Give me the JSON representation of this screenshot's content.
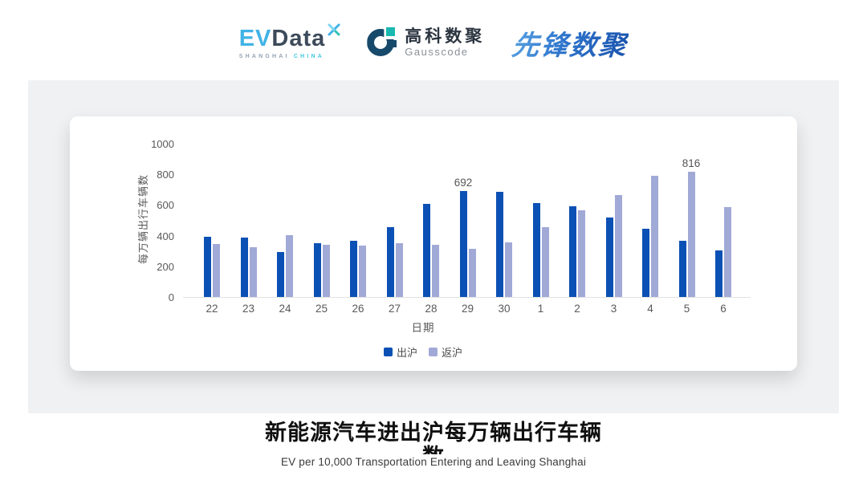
{
  "header": {
    "evdata": {
      "ev": "EV",
      "data": "Data",
      "sub_shanghai": "SHANGHAI",
      "sub_china": "CHINA"
    },
    "gausscode": {
      "name_cn": "高科数聚",
      "name_en": "Gausscode"
    },
    "pioneer": {
      "name_cn": "先锋数聚"
    }
  },
  "chart_data": {
    "type": "bar",
    "categories": [
      "22",
      "23",
      "24",
      "25",
      "26",
      "27",
      "28",
      "29",
      "30",
      "1",
      "2",
      "3",
      "4",
      "5",
      "6"
    ],
    "series": [
      {
        "name": "出沪",
        "color": "#0b50b4",
        "values": [
          395,
          385,
          295,
          350,
          365,
          455,
          610,
          692,
          685,
          615,
          590,
          520,
          445,
          365,
          305
        ]
      },
      {
        "name": "返沪",
        "color": "#a1a9d7",
        "values": [
          345,
          325,
          405,
          340,
          335,
          350,
          340,
          315,
          355,
          455,
          565,
          665,
          790,
          816,
          585
        ]
      }
    ],
    "data_labels": [
      {
        "series": 0,
        "category": "29",
        "value": "692"
      },
      {
        "series": 1,
        "category": "5",
        "value": "816"
      }
    ],
    "xlabel": "日期",
    "ylabel": "每万辆出行车辆数",
    "ylim": [
      0,
      1000
    ],
    "yticks": [
      0,
      200,
      400,
      600,
      800,
      1000
    ],
    "grid": "off",
    "legend_position": "bottom"
  },
  "footer": {
    "title_cn": "新能源汽车进出沪每万辆出行车辆数",
    "subtitle_en": "EV per 10,000 Transportation Entering and Leaving Shanghai"
  }
}
